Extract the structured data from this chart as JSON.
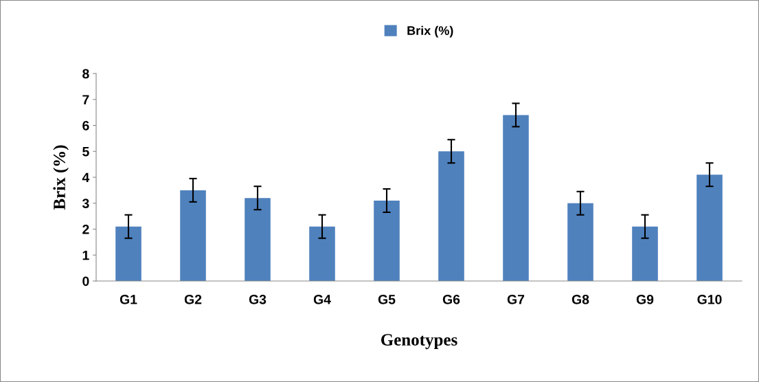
{
  "chart_data": {
    "type": "bar",
    "xlabel": "Genotypes",
    "ylabel": "Brix (%)",
    "categories": [
      "G1",
      "G2",
      "G3",
      "G4",
      "G5",
      "G6",
      "G7",
      "G8",
      "G9",
      "G10"
    ],
    "series": [
      {
        "name": "Brix (%)",
        "color": "#4f81bd",
        "values": [
          2.1,
          3.5,
          3.2,
          2.1,
          3.1,
          5.0,
          6.4,
          3.0,
          2.1,
          4.1
        ],
        "errors": [
          0.45,
          0.45,
          0.45,
          0.45,
          0.45,
          0.45,
          0.45,
          0.45,
          0.45,
          0.45
        ]
      }
    ],
    "ylim": [
      0,
      8
    ],
    "yticks": [
      0,
      1,
      2,
      3,
      4,
      5,
      6,
      7,
      8
    ],
    "grid": false,
    "legend": "top"
  }
}
